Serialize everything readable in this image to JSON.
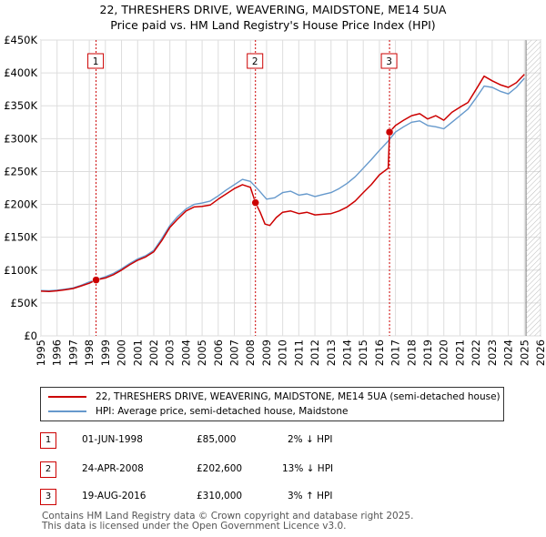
{
  "header": {
    "title_line1": "22, THRESHERS DRIVE, WEAVERING, MAIDSTONE, ME14 5UA",
    "title_line2": "Price paid vs. HM Land Registry's House Price Index (HPI)"
  },
  "chart_data": {
    "type": "line",
    "title": "22, THRESHERS DRIVE, WEAVERING, MAIDSTONE, ME14 5UA",
    "subtitle": "Price paid vs. HM Land Registry's House Price Index (HPI)",
    "xlabel": "",
    "ylabel": "",
    "xlim": [
      1995,
      2026
    ],
    "ylim": [
      0,
      450000
    ],
    "grid": true,
    "x_ticks": [
      "1995",
      "1996",
      "1997",
      "1998",
      "1999",
      "2000",
      "2001",
      "2002",
      "2003",
      "2004",
      "2005",
      "2006",
      "2007",
      "2008",
      "2009",
      "2010",
      "2011",
      "2012",
      "2013",
      "2014",
      "2015",
      "2016",
      "2017",
      "2018",
      "2019",
      "2020",
      "2021",
      "2022",
      "2023",
      "2024",
      "2025",
      "2026"
    ],
    "y_ticks": [
      {
        "value": 0,
        "label": "£0"
      },
      {
        "value": 50000,
        "label": "£50K"
      },
      {
        "value": 100000,
        "label": "£100K"
      },
      {
        "value": 150000,
        "label": "£150K"
      },
      {
        "value": 200000,
        "label": "£200K"
      },
      {
        "value": 250000,
        "label": "£250K"
      },
      {
        "value": 300000,
        "label": "£300K"
      },
      {
        "value": 350000,
        "label": "£350K"
      },
      {
        "value": 400000,
        "label": "£400K"
      },
      {
        "value": 450000,
        "label": "£450K"
      }
    ],
    "colors": {
      "property": "#cc0000",
      "hpi": "#6699cc",
      "grid": "#dddddd",
      "vline": "#cc0000",
      "future_hatch": "#bbbbbb"
    },
    "future_from": 2025.1,
    "series": [
      {
        "name": "22, THRESHERS DRIVE, WEAVERING, MAIDSTONE, ME14 5UA (semi-detached house)",
        "x": [
          1995.0,
          1995.5,
          1996.0,
          1996.5,
          1997.0,
          1997.5,
          1998.0,
          1998.42,
          1999.0,
          1999.5,
          2000.0,
          2000.5,
          2001.0,
          2001.5,
          2002.0,
          2002.5,
          2003.0,
          2003.5,
          2004.0,
          2004.5,
          2005.0,
          2005.5,
          2006.0,
          2006.5,
          2007.0,
          2007.5,
          2008.0,
          2008.31,
          2008.6,
          2008.9,
          2009.2,
          2009.6,
          2010.0,
          2010.5,
          2011.0,
          2011.5,
          2012.0,
          2012.5,
          2013.0,
          2013.5,
          2014.0,
          2014.5,
          2015.0,
          2015.5,
          2016.0,
          2016.55,
          2016.63,
          2017.0,
          2017.5,
          2018.0,
          2018.5,
          2019.0,
          2019.5,
          2020.0,
          2020.5,
          2021.0,
          2021.5,
          2022.0,
          2022.5,
          2023.0,
          2023.5,
          2024.0,
          2024.5,
          2025.0
        ],
        "y": [
          68000,
          67500,
          68500,
          70000,
          72000,
          76000,
          80000,
          85000,
          88000,
          93000,
          100000,
          108000,
          115000,
          120000,
          128000,
          145000,
          165000,
          178000,
          190000,
          196000,
          197000,
          199000,
          208000,
          216000,
          224000,
          230000,
          226000,
          202600,
          188000,
          170000,
          168000,
          180000,
          188000,
          190000,
          186000,
          188000,
          184000,
          185000,
          186000,
          190000,
          196000,
          205000,
          218000,
          230000,
          245000,
          255000,
          310000,
          320000,
          328000,
          335000,
          338000,
          330000,
          335000,
          328000,
          340000,
          348000,
          355000,
          375000,
          395000,
          388000,
          382000,
          378000,
          385000,
          398000
        ]
      },
      {
        "name": "HPI: Average price, semi-detached house, Maidstone",
        "x": [
          1995.0,
          1995.5,
          1996.0,
          1996.5,
          1997.0,
          1997.5,
          1998.0,
          1998.5,
          1999.0,
          1999.5,
          2000.0,
          2000.5,
          2001.0,
          2001.5,
          2002.0,
          2002.5,
          2003.0,
          2003.5,
          2004.0,
          2004.5,
          2005.0,
          2005.5,
          2006.0,
          2006.5,
          2007.0,
          2007.5,
          2008.0,
          2008.5,
          2009.0,
          2009.5,
          2010.0,
          2010.5,
          2011.0,
          2011.5,
          2012.0,
          2012.5,
          2013.0,
          2013.5,
          2014.0,
          2014.5,
          2015.0,
          2015.5,
          2016.0,
          2016.5,
          2017.0,
          2017.5,
          2018.0,
          2018.5,
          2019.0,
          2019.5,
          2020.0,
          2020.5,
          2021.0,
          2021.5,
          2022.0,
          2022.5,
          2023.0,
          2023.5,
          2024.0,
          2024.5,
          2025.0
        ],
        "y": [
          69000,
          68500,
          69500,
          71000,
          73000,
          77000,
          82000,
          86000,
          90000,
          95000,
          102000,
          110000,
          117000,
          122000,
          130000,
          148000,
          168000,
          182000,
          193000,
          200000,
          202000,
          205000,
          213000,
          222000,
          230000,
          238000,
          235000,
          222000,
          208000,
          210000,
          218000,
          220000,
          214000,
          216000,
          212000,
          215000,
          218000,
          224000,
          232000,
          242000,
          255000,
          268000,
          282000,
          295000,
          310000,
          318000,
          325000,
          327000,
          320000,
          318000,
          315000,
          325000,
          335000,
          345000,
          362000,
          380000,
          378000,
          372000,
          368000,
          378000,
          392000
        ]
      }
    ],
    "transactions": [
      {
        "n": "1",
        "x": 1998.42,
        "y": 85000,
        "date": "01-JUN-1998",
        "price": "£85,000",
        "hpi": "2% ↓ HPI"
      },
      {
        "n": "2",
        "x": 2008.31,
        "y": 202600,
        "date": "24-APR-2008",
        "price": "£202,600",
        "hpi": "13% ↓ HPI"
      },
      {
        "n": "3",
        "x": 2016.63,
        "y": 310000,
        "date": "19-AUG-2016",
        "price": "£310,000",
        "hpi": "3% ↑ HPI"
      }
    ]
  },
  "legend": {
    "property_label": "22, THRESHERS DRIVE, WEAVERING, MAIDSTONE, ME14 5UA (semi-detached house)",
    "hpi_label": "HPI: Average price, semi-detached house, Maidstone"
  },
  "footer": {
    "line1": "Contains HM Land Registry data © Crown copyright and database right 2025.",
    "line2": "This data is licensed under the Open Government Licence v3.0."
  }
}
